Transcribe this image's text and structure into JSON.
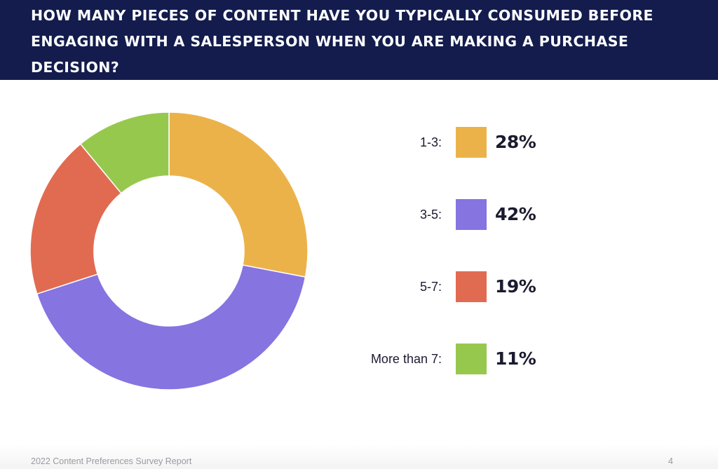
{
  "header": {
    "title": "How many pieces of content have you typically consumed before engaging with a salesperson when you are making a purchase decision?"
  },
  "chart_data": {
    "type": "pie",
    "variant": "donut",
    "categories": [
      "1-3:",
      "3-5:",
      "5-7:",
      "More than 7:"
    ],
    "values": [
      28,
      42,
      19,
      11
    ],
    "value_labels": [
      "28%",
      "42%",
      "19%",
      "11%"
    ],
    "colors": [
      "#ecb24a",
      "#8674e0",
      "#e16b51",
      "#97c84e"
    ],
    "legend_position": "right",
    "start_angle": "top",
    "direction": "clockwise"
  },
  "footer": {
    "report_title": "2022 Content Preferences Survey Report",
    "page_number": "4"
  }
}
